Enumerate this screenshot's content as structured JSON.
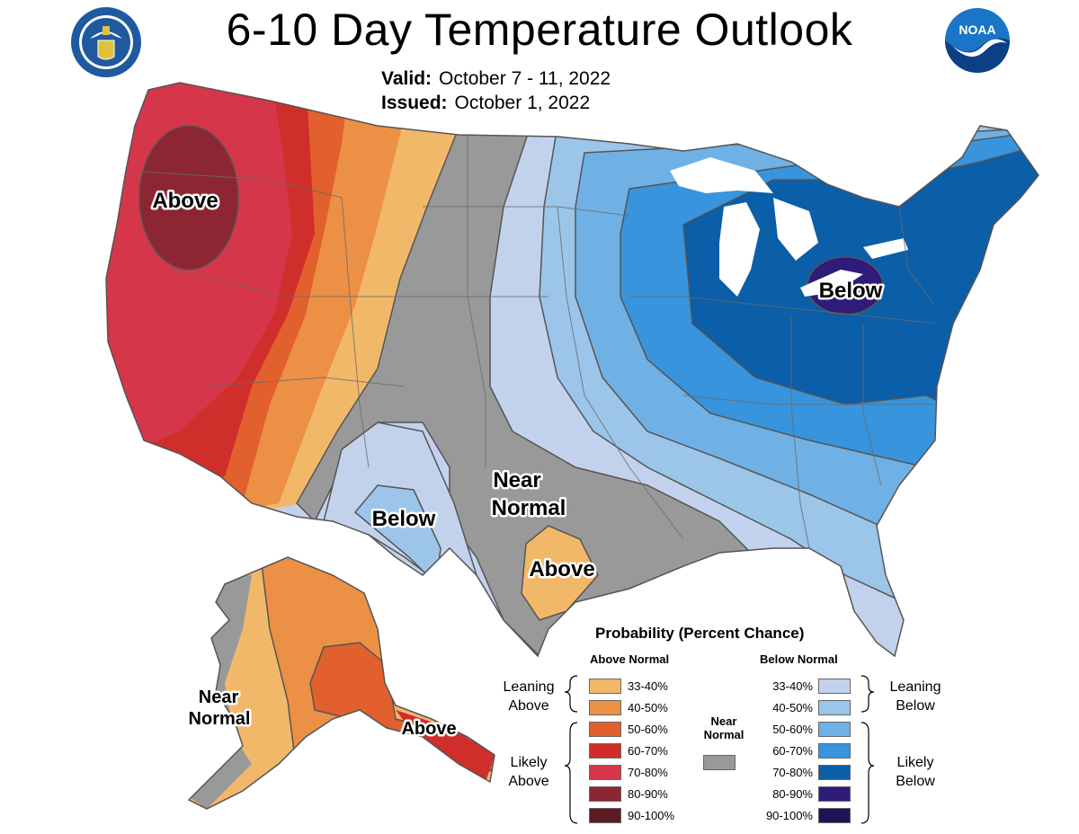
{
  "header": {
    "title": "6-10 Day Temperature Outlook",
    "valid_label": "Valid:",
    "valid_value": "October 7 - 11, 2022",
    "issued_label": "Issued:",
    "issued_value": "October 1, 2022"
  },
  "logos": {
    "left": "department-of-commerce-seal",
    "right": "noaa-logo",
    "noaa_text": "NOAA"
  },
  "map_labels": {
    "west_above": "Above",
    "east_below": "Below",
    "sw_below": "Below",
    "near_normal_line1": "Near",
    "near_normal_line2": "Normal",
    "texas_above": "Above",
    "ak_near_line1": "Near",
    "ak_near_line2": "Normal",
    "ak_above": "Above"
  },
  "legend": {
    "title": "Probability (Percent Chance)",
    "above_header": "Above Normal",
    "below_header": "Below Normal",
    "near_header_line1": "Near",
    "near_header_line2": "Normal",
    "leaning_above_1": "Leaning",
    "leaning_above_2": "Above",
    "likely_above_1": "Likely",
    "likely_above_2": "Above",
    "leaning_below_1": "Leaning",
    "leaning_below_2": "Below",
    "likely_below_1": "Likely",
    "likely_below_2": "Below",
    "above": [
      {
        "label": "33-40%",
        "color": "#f2b86a"
      },
      {
        "label": "40-50%",
        "color": "#ec9046"
      },
      {
        "label": "50-60%",
        "color": "#e2602e"
      },
      {
        "label": "60-70%",
        "color": "#cf2e2a"
      },
      {
        "label": "70-80%",
        "color": "#d63649"
      },
      {
        "label": "80-90%",
        "color": "#8c2633"
      },
      {
        "label": "90-100%",
        "color": "#5e1a22"
      }
    ],
    "below": [
      {
        "label": "33-40%",
        "color": "#c3d2ec"
      },
      {
        "label": "40-50%",
        "color": "#9cc5ea"
      },
      {
        "label": "50-60%",
        "color": "#6fb1e4"
      },
      {
        "label": "60-70%",
        "color": "#3894dc"
      },
      {
        "label": "70-80%",
        "color": "#0b5ea8"
      },
      {
        "label": "80-90%",
        "color": "#2f1b7a"
      },
      {
        "label": "90-100%",
        "color": "#1d1457"
      }
    ],
    "near_color": "#999999"
  }
}
